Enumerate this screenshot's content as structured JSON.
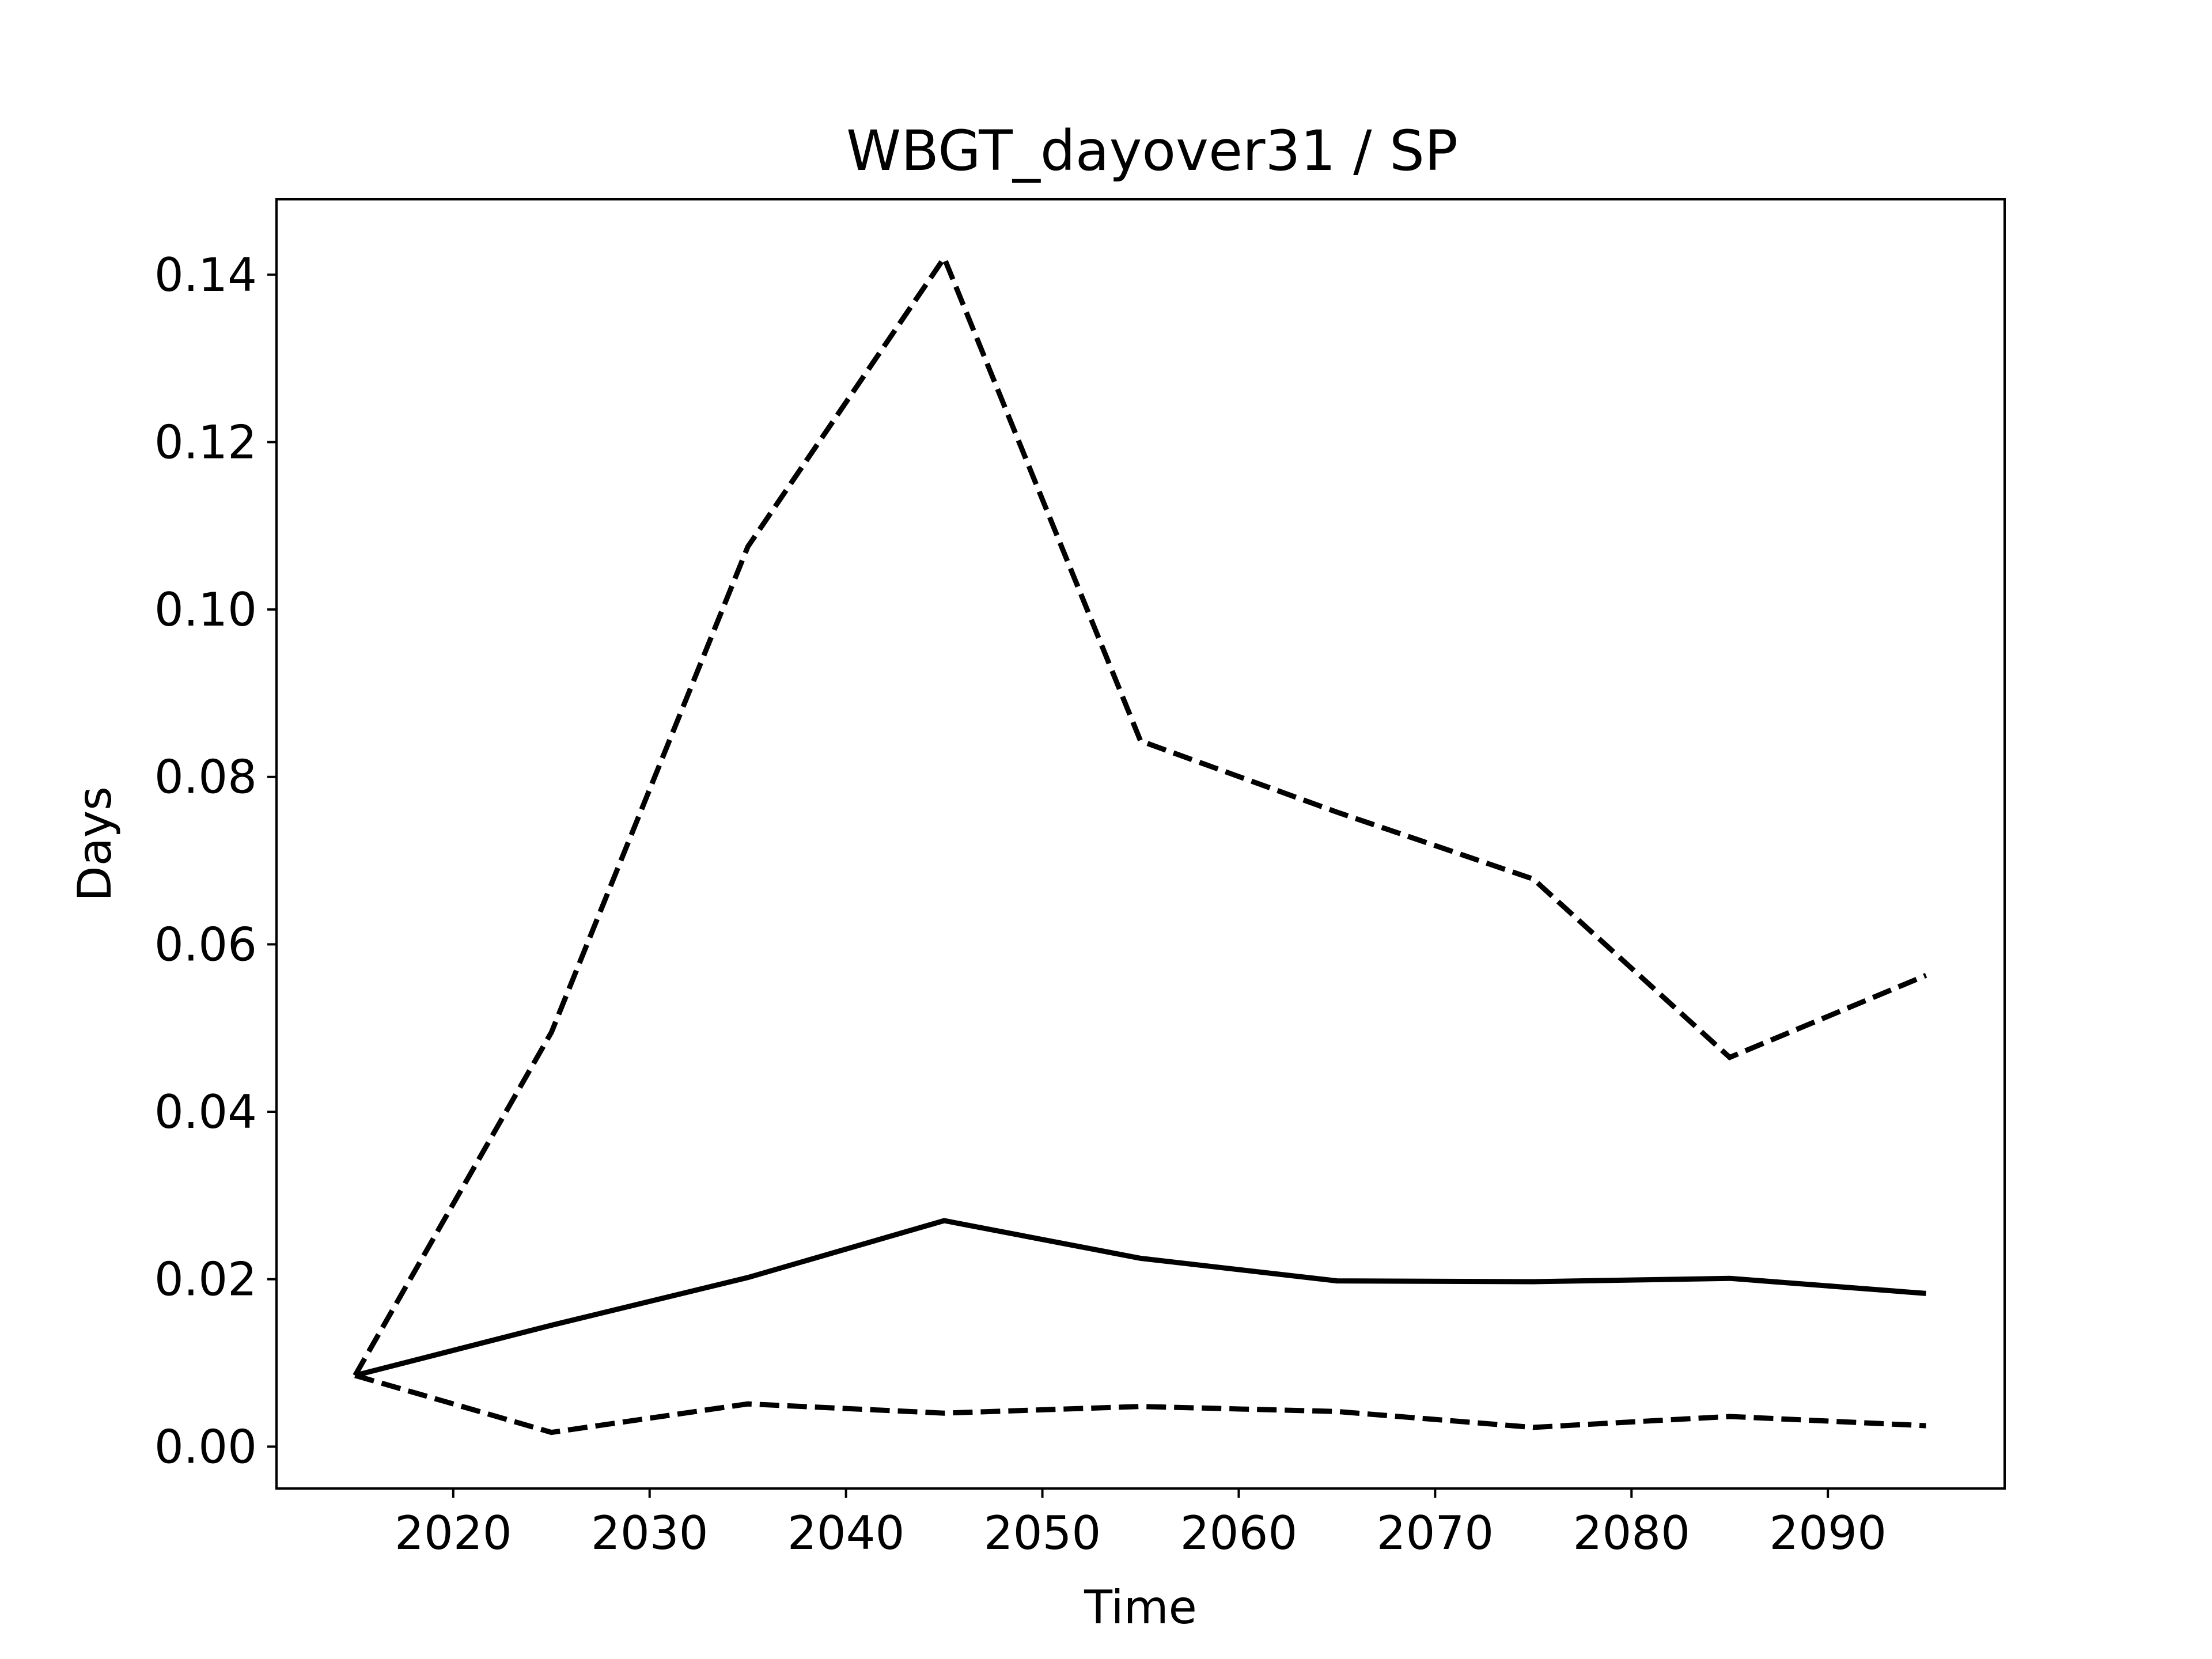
{
  "chart_data": {
    "type": "line",
    "title": "WBGT_dayover31 / SP",
    "xlabel": "Time",
    "ylabel": "Days",
    "xlim": [
      2011,
      2099
    ],
    "ylim": [
      -0.005,
      0.149
    ],
    "xticks": [
      2020,
      2030,
      2040,
      2050,
      2060,
      2070,
      2080,
      2090
    ],
    "yticks": [
      0.0,
      0.02,
      0.04,
      0.06,
      0.08,
      0.1,
      0.12,
      0.14
    ],
    "ytick_labels": [
      "0.00",
      "0.02",
      "0.04",
      "0.06",
      "0.08",
      "0.10",
      "0.12",
      "0.14"
    ],
    "grid": false,
    "legend": null,
    "x": [
      2015,
      2025,
      2035,
      2045,
      2055,
      2065,
      2075,
      2085,
      2095
    ],
    "series": [
      {
        "style": "solid",
        "color": "#000000",
        "values": [
          0.0085,
          0.0145,
          0.0202,
          0.027,
          0.0225,
          0.0198,
          0.0197,
          0.0201,
          0.0183
        ]
      },
      {
        "style": "dashed",
        "color": "#000000",
        "values": [
          0.0085,
          0.0495,
          0.1075,
          0.142,
          0.0843,
          0.0758,
          0.0678,
          0.0465,
          0.0563
        ]
      },
      {
        "style": "dashed",
        "color": "#000000",
        "values": [
          0.0085,
          0.0017,
          0.0051,
          0.004,
          0.0048,
          0.0042,
          0.0023,
          0.0036,
          0.0025
        ]
      }
    ]
  }
}
